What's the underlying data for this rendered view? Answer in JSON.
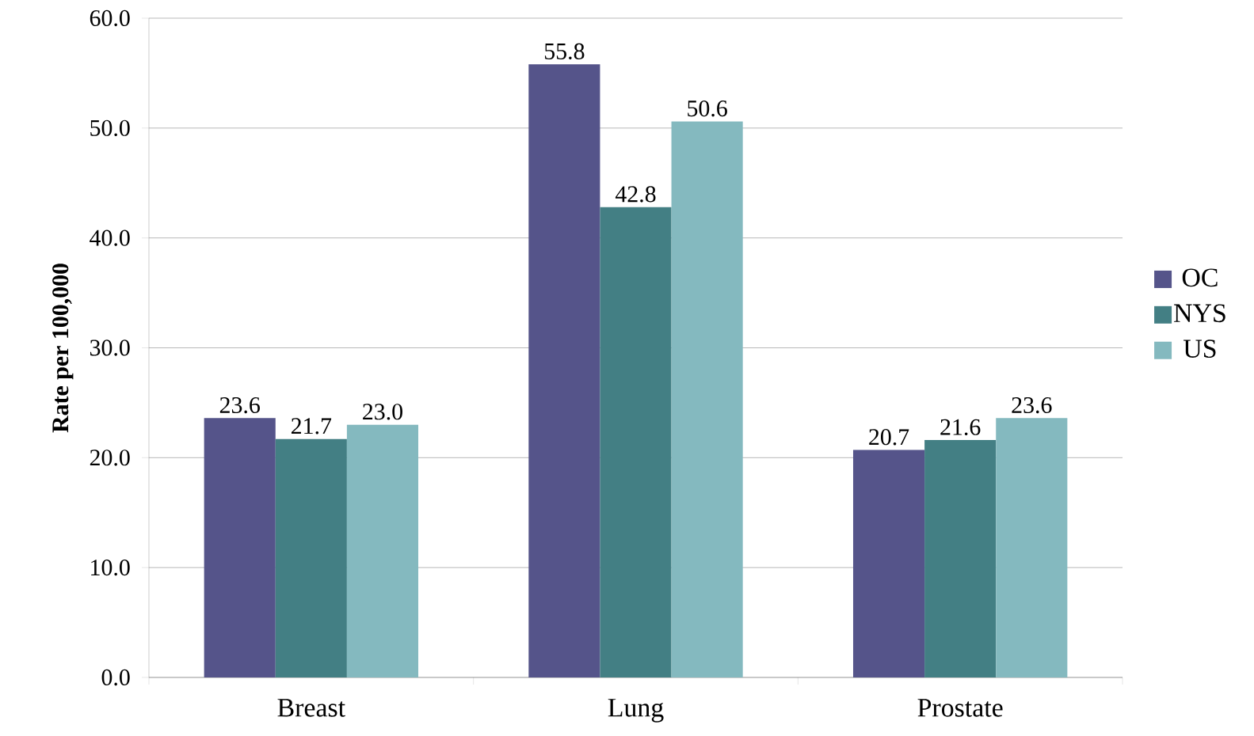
{
  "chart_data": {
    "type": "bar",
    "ylabel": "Rate per 100,000",
    "categories": [
      "Breast",
      "Lung",
      "Prostate"
    ],
    "series": [
      {
        "name": "OC",
        "color": "#55548a",
        "values": [
          23.6,
          55.8,
          20.7
        ],
        "value_labels": [
          "23.6",
          "55.8",
          "20.7"
        ]
      },
      {
        "name": "NYS",
        "color": "#437f84",
        "values": [
          21.7,
          42.8,
          21.6
        ],
        "value_labels": [
          "21.7",
          "42.8",
          "21.6"
        ]
      },
      {
        "name": "US",
        "color": "#84b9bf",
        "values": [
          23.0,
          50.6,
          23.6
        ],
        "value_labels": [
          "23.0",
          "50.6",
          "23.6"
        ]
      }
    ],
    "ylim": [
      0,
      60
    ],
    "yticks": [
      {
        "value": 0,
        "label": "0.0"
      },
      {
        "value": 10,
        "label": "10.0"
      },
      {
        "value": 20,
        "label": "20.0"
      },
      {
        "value": 30,
        "label": "30.0"
      },
      {
        "value": 40,
        "label": "40.0"
      },
      {
        "value": 50,
        "label": "50.0"
      },
      {
        "value": 60,
        "label": "60.0"
      }
    ],
    "grid": "y",
    "legend": "right"
  }
}
